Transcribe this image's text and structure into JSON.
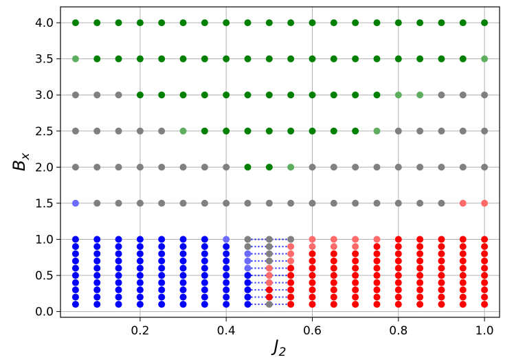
{
  "chart_data": {
    "type": "scatter",
    "title": "",
    "xlabel": {
      "base": "J",
      "sub": "2"
    },
    "ylabel": {
      "base": "B",
      "sub": "x"
    },
    "xlim": [
      0.015,
      1.035
    ],
    "ylim": [
      -0.08,
      4.22
    ],
    "xticks": [
      0.2,
      0.4,
      0.6,
      0.8,
      1.0
    ],
    "xtick_labels": [
      "0.2",
      "0.4",
      "0.6",
      "0.8",
      "1.0"
    ],
    "yticks": [
      0.0,
      0.5,
      1.0,
      1.5,
      2.0,
      2.5,
      3.0,
      3.5,
      4.0
    ],
    "ytick_labels": [
      "0.0",
      "0.5",
      "1.0",
      "1.5",
      "2.0",
      "2.5",
      "3.0",
      "3.5",
      "4.0"
    ],
    "grid": true,
    "legend": "none",
    "colors": {
      "blue": "#0000ff",
      "blue_light": "#6b6bff",
      "red": "#ff0000",
      "red_light": "#ff6b6b",
      "grey": "#808080",
      "green": "#008000",
      "green_light": "#5fad5f",
      "axis": "#000000",
      "grid": "#b0b0b0"
    },
    "x_values": [
      0.05,
      0.1,
      0.15,
      0.2,
      0.25,
      0.3,
      0.35,
      0.4,
      0.45,
      0.5,
      0.55,
      0.6,
      0.65,
      0.7,
      0.75,
      0.8,
      0.85,
      0.9,
      0.95,
      1.0
    ],
    "low_field_y_values": [
      0.1,
      0.2,
      0.3,
      0.4,
      0.5,
      0.6,
      0.7,
      0.8,
      0.9,
      1.0
    ],
    "columns_low_field": [
      {
        "x": 0.05,
        "colors": [
          "blue",
          "blue",
          "blue",
          "blue",
          "blue",
          "blue",
          "blue",
          "blue",
          "blue",
          "blue"
        ]
      },
      {
        "x": 0.1,
        "colors": [
          "blue",
          "blue",
          "blue",
          "blue",
          "blue",
          "blue",
          "blue",
          "blue",
          "blue",
          "blue"
        ]
      },
      {
        "x": 0.15,
        "colors": [
          "blue",
          "blue",
          "blue",
          "blue",
          "blue",
          "blue",
          "blue",
          "blue",
          "blue",
          "blue"
        ]
      },
      {
        "x": 0.2,
        "colors": [
          "blue",
          "blue",
          "blue",
          "blue",
          "blue",
          "blue",
          "blue",
          "blue",
          "blue",
          "blue"
        ]
      },
      {
        "x": 0.25,
        "colors": [
          "blue",
          "blue",
          "blue",
          "blue",
          "blue",
          "blue",
          "blue",
          "blue",
          "blue",
          "blue"
        ]
      },
      {
        "x": 0.3,
        "colors": [
          "blue",
          "blue",
          "blue",
          "blue",
          "blue",
          "blue",
          "blue",
          "blue",
          "blue",
          "blue"
        ]
      },
      {
        "x": 0.35,
        "colors": [
          "blue",
          "blue",
          "blue",
          "blue",
          "blue",
          "blue",
          "blue",
          "blue",
          "blue",
          "blue"
        ]
      },
      {
        "x": 0.4,
        "colors": [
          "blue",
          "blue",
          "blue",
          "blue",
          "blue",
          "blue",
          "blue",
          "blue",
          "blue",
          "blue_light"
        ]
      },
      {
        "x": 0.45,
        "colors": [
          "blue",
          "blue",
          "blue",
          "blue",
          "blue",
          "blue_light",
          "blue_light",
          "blue_light",
          "grey",
          "grey"
        ]
      },
      {
        "x": 0.5,
        "colors": [
          "grey",
          "red",
          "red",
          "red_light",
          "red_light",
          "red_light",
          "grey",
          "grey",
          "grey",
          "grey"
        ]
      },
      {
        "x": 0.55,
        "colors": [
          "red",
          "red",
          "red",
          "red",
          "red",
          "red",
          "red_light",
          "red_light",
          "red_light",
          "grey"
        ]
      },
      {
        "x": 0.6,
        "colors": [
          "red",
          "red",
          "red",
          "red",
          "red",
          "red",
          "red",
          "red",
          "red_light",
          "red_light"
        ]
      },
      {
        "x": 0.65,
        "colors": [
          "red",
          "red",
          "red",
          "red",
          "red",
          "red",
          "red",
          "red",
          "red_light",
          "red_light"
        ]
      },
      {
        "x": 0.7,
        "colors": [
          "red",
          "red",
          "red",
          "red",
          "red",
          "red",
          "red",
          "red",
          "red_light",
          "red_light"
        ]
      },
      {
        "x": 0.75,
        "colors": [
          "red",
          "red",
          "red",
          "red",
          "red",
          "red",
          "red",
          "red",
          "red",
          "red_light"
        ]
      },
      {
        "x": 0.8,
        "colors": [
          "red",
          "red",
          "red",
          "red",
          "red",
          "red",
          "red",
          "red",
          "red",
          "red"
        ]
      },
      {
        "x": 0.85,
        "colors": [
          "red",
          "red",
          "red",
          "red",
          "red",
          "red",
          "red",
          "red",
          "red",
          "red"
        ]
      },
      {
        "x": 0.9,
        "colors": [
          "red",
          "red",
          "red",
          "red",
          "red",
          "red",
          "red",
          "red",
          "red",
          "red"
        ]
      },
      {
        "x": 0.95,
        "colors": [
          "red",
          "red",
          "red",
          "red",
          "red",
          "red",
          "red",
          "red",
          "red",
          "red"
        ]
      },
      {
        "x": 1.0,
        "colors": [
          "red",
          "red",
          "red",
          "red",
          "red",
          "red",
          "red",
          "red",
          "red",
          "red"
        ]
      }
    ],
    "rows_high_field": [
      {
        "y": 1.5,
        "colors": [
          "blue_light",
          "grey",
          "grey",
          "grey",
          "grey",
          "grey",
          "grey",
          "grey",
          "grey",
          "grey",
          "grey",
          "grey",
          "grey",
          "grey",
          "grey",
          "grey",
          "grey",
          "grey",
          "red_light",
          "red_light"
        ]
      },
      {
        "y": 2.0,
        "colors": [
          "grey",
          "grey",
          "grey",
          "grey",
          "grey",
          "grey",
          "grey",
          "grey",
          "green",
          "green",
          "green_light",
          "grey",
          "grey",
          "grey",
          "grey",
          "grey",
          "grey",
          "grey",
          "grey",
          "grey"
        ]
      },
      {
        "y": 2.5,
        "colors": [
          "grey",
          "grey",
          "grey",
          "grey",
          "grey",
          "green_light",
          "green",
          "green",
          "green",
          "green",
          "green",
          "green",
          "green",
          "green",
          "green_light",
          "grey",
          "grey",
          "grey",
          "grey",
          "grey"
        ]
      },
      {
        "y": 3.0,
        "colors": [
          "grey",
          "grey",
          "grey",
          "green",
          "green",
          "green",
          "green",
          "green",
          "green",
          "green",
          "green",
          "green",
          "green",
          "green",
          "green",
          "green_light",
          "green_light",
          "grey",
          "grey",
          "grey"
        ]
      },
      {
        "y": 3.5,
        "colors": [
          "green_light",
          "green",
          "green",
          "green",
          "green",
          "green",
          "green",
          "green",
          "green",
          "green",
          "green",
          "green",
          "green",
          "green",
          "green",
          "green",
          "green",
          "green",
          "green",
          "green_light"
        ]
      },
      {
        "y": 4.0,
        "colors": [
          "green",
          "green",
          "green",
          "green",
          "green",
          "green",
          "green",
          "green",
          "green",
          "green",
          "green",
          "green",
          "green",
          "green",
          "green",
          "green",
          "green",
          "green",
          "green",
          "green"
        ]
      }
    ],
    "dotted_connector_x_ranges": [
      [
        0.45,
        0.55
      ]
    ]
  }
}
